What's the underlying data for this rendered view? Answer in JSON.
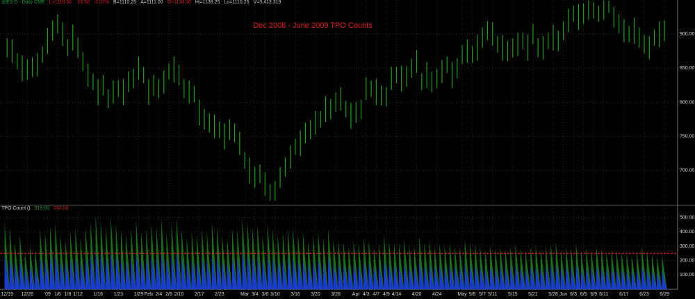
{
  "chart_data": [
    {
      "type": "ohlc",
      "header": [
        "@ES D - Daily CME",
        "L=1118.50",
        "-23.50",
        "-2.07%",
        "B=1110.25",
        "A=1111.00",
        "O=1134.00",
        "Hi=1138.25",
        "Lo=1110.25",
        "V=3,413,319"
      ],
      "title": "Dec 2008 - June 2009 TPO Counts",
      "color": "#1fa21f",
      "grid": true,
      "xlim": [
        -1.4,
        132.6
      ],
      "xticks": [
        {
          "value": 0,
          "label": "12/19"
        },
        {
          "value": 4,
          "label": "12/26"
        },
        {
          "value": 8,
          "label": "'09"
        },
        {
          "value": 10,
          "label": "1/6"
        },
        {
          "value": 12,
          "label": "1/8"
        },
        {
          "value": 14,
          "label": "1/12"
        },
        {
          "value": 18,
          "label": "1/16"
        },
        {
          "value": 22,
          "label": "1/23"
        },
        {
          "value": 26,
          "label": "1/29"
        },
        {
          "value": 28,
          "label": "Feb"
        },
        {
          "value": 30,
          "label": "2/4"
        },
        {
          "value": 32,
          "label": "2/6"
        },
        {
          "value": 34,
          "label": "2/10"
        },
        {
          "value": 38,
          "label": "2/17"
        },
        {
          "value": 42,
          "label": "2/23"
        },
        {
          "value": 47,
          "label": "Mar"
        },
        {
          "value": 49,
          "label": "3/4"
        },
        {
          "value": 51,
          "label": "3/6"
        },
        {
          "value": 53,
          "label": "3/10"
        },
        {
          "value": 57,
          "label": "3/16"
        },
        {
          "value": 61,
          "label": "3/20"
        },
        {
          "value": 65,
          "label": "3/26"
        },
        {
          "value": 69,
          "label": "Apr"
        },
        {
          "value": 71,
          "label": "4/3"
        },
        {
          "value": 73,
          "label": "4/7"
        },
        {
          "value": 75,
          "label": "4/9"
        },
        {
          "value": 77,
          "label": "4/14"
        },
        {
          "value": 81,
          "label": "4/20"
        },
        {
          "value": 85,
          "label": "4/24"
        },
        {
          "value": 90,
          "label": "May"
        },
        {
          "value": 92,
          "label": "5/5"
        },
        {
          "value": 94,
          "label": "5/7"
        },
        {
          "value": 96,
          "label": "5/11"
        },
        {
          "value": 100,
          "label": "5/15"
        },
        {
          "value": 104,
          "label": "5/21"
        },
        {
          "value": 108,
          "label": "5/28"
        },
        {
          "value": 110,
          "label": "Jun"
        },
        {
          "value": 112,
          "label": "6/3"
        },
        {
          "value": 114,
          "label": "6/5"
        },
        {
          "value": 116,
          "label": "6/9"
        },
        {
          "value": 118,
          "label": "6/11"
        },
        {
          "value": 122,
          "label": "6/17"
        },
        {
          "value": 126,
          "label": "6/23"
        },
        {
          "value": 130,
          "label": "6/29"
        }
      ],
      "ylim": [
        650,
        950
      ],
      "yticks": [
        {
          "value": 700,
          "label": "700.00"
        },
        {
          "value": 750,
          "label": "750.00"
        },
        {
          "value": 800,
          "label": "800.00"
        },
        {
          "value": 850,
          "label": "850.00"
        },
        {
          "value": 900,
          "label": "900.00"
        }
      ],
      "high": [
        894,
        892,
        872,
        869,
        863,
        866,
        872,
        882,
        909,
        920,
        929,
        917,
        892,
        914,
        895,
        874,
        857,
        842,
        834,
        840,
        819,
        832,
        832,
        834,
        845,
        849,
        867,
        852,
        834,
        840,
        834,
        847,
        857,
        867,
        855,
        834,
        832,
        824,
        804,
        790,
        784,
        782,
        772,
        769,
        775,
        769,
        757,
        727,
        719,
        705,
        709,
        697,
        680,
        684,
        705,
        719,
        737,
        747,
        759,
        770,
        774,
        787,
        787,
        809,
        805,
        814,
        822,
        802,
        799,
        800,
        804,
        837,
        832,
        834,
        825,
        822,
        852,
        852,
        854,
        853,
        864,
        877,
        842,
        859,
        845,
        849,
        862,
        867,
        859,
        865,
        884,
        892,
        882,
        899,
        910,
        919,
        917,
        897,
        899,
        890,
        894,
        902,
        902,
        899,
        915,
        894,
        897,
        902,
        914,
        905,
        919,
        937,
        942,
        944,
        945,
        949,
        947,
        942,
        949,
        949,
        940,
        929,
        922,
        912,
        924,
        910,
        899,
        897,
        907,
        919,
        920
      ],
      "low": [
        866,
        858,
        848,
        831,
        833,
        838,
        838,
        858,
        871,
        890,
        901,
        883,
        868,
        876,
        865,
        846,
        823,
        818,
        796,
        810,
        791,
        798,
        808,
        796,
        815,
        821,
        833,
        828,
        796,
        810,
        806,
        813,
        833,
        829,
        825,
        806,
        798,
        800,
        766,
        760,
        756,
        748,
        748,
        731,
        745,
        741,
        723,
        703,
        681,
        675,
        681,
        663,
        656,
        656,
        675,
        691,
        703,
        723,
        721,
        740,
        746,
        753,
        763,
        771,
        775,
        786,
        788,
        778,
        761,
        770,
        776,
        803,
        808,
        796,
        795,
        794,
        818,
        828,
        816,
        823,
        836,
        843,
        818,
        821,
        815,
        821,
        828,
        843,
        821,
        835,
        856,
        858,
        858,
        861,
        880,
        891,
        883,
        873,
        861,
        860,
        866,
        868,
        878,
        861,
        885,
        866,
        863,
        878,
        876,
        875,
        891,
        903,
        918,
        906,
        915,
        921,
        923,
        918,
        921,
        931,
        910,
        901,
        888,
        888,
        886,
        880,
        871,
        863,
        883,
        881,
        890
      ]
    },
    {
      "type": "sawtooth",
      "title": "TPO Count ()",
      "readings": [
        "319.00",
        "250.00"
      ],
      "reference_line": {
        "value": 250,
        "color": "#e02020"
      },
      "xlim": [
        -1.4,
        132.6
      ],
      "ylim": [
        0,
        580
      ],
      "yticks": [
        {
          "value": 100,
          "label": "100.00"
        },
        {
          "value": 200,
          "label": "200.00"
        },
        {
          "value": 300,
          "label": "300.00"
        },
        {
          "value": 400,
          "label": "400.00"
        },
        {
          "value": 500,
          "label": "500.00"
        }
      ],
      "grid": true,
      "series": [
        {
          "color": "#1a6e1a",
          "values": [
            470,
            430,
            330,
            380,
            260,
            310,
            280,
            420,
            400,
            440,
            460,
            380,
            350,
            400,
            430,
            360,
            430,
            470,
            520,
            480,
            440,
            510,
            460,
            420,
            380,
            430,
            480,
            400,
            420,
            460,
            440,
            490,
            400,
            470,
            500,
            420,
            360,
            400,
            380,
            420,
            400,
            470,
            440,
            380,
            360,
            430,
            420,
            500,
            470,
            440,
            450,
            380,
            460,
            420,
            380,
            400,
            420,
            430,
            390,
            400,
            340,
            380,
            400,
            360,
            420,
            350,
            340,
            330,
            300,
            340,
            320,
            360,
            340,
            300,
            320,
            380,
            340,
            330,
            320,
            350,
            310,
            300,
            370,
            330,
            350,
            300,
            320,
            310,
            330,
            300,
            300,
            350,
            330,
            320,
            300,
            280,
            310,
            290,
            300,
            280,
            300,
            320,
            290,
            270,
            300,
            310,
            290,
            300,
            320,
            330,
            280,
            300,
            290,
            320,
            270,
            290,
            280,
            300,
            290,
            260,
            280,
            270,
            260,
            250,
            240,
            260,
            300,
            270,
            250,
            230,
            240
          ]
        },
        {
          "color": "#1a3ccc",
          "values": [
            240,
            220,
            180,
            200,
            150,
            170,
            150,
            220,
            210,
            230,
            240,
            200,
            190,
            210,
            220,
            190,
            220,
            240,
            260,
            250,
            230,
            260,
            240,
            220,
            200,
            220,
            250,
            210,
            220,
            240,
            230,
            250,
            210,
            240,
            260,
            220,
            190,
            210,
            200,
            220,
            210,
            240,
            230,
            200,
            190,
            220,
            220,
            260,
            240,
            230,
            230,
            200,
            240,
            220,
            200,
            210,
            220,
            220,
            200,
            210,
            180,
            200,
            210,
            190,
            220,
            180,
            180,
            170,
            160,
            180,
            170,
            190,
            180,
            160,
            170,
            200,
            180,
            170,
            170,
            180,
            160,
            160,
            190,
            170,
            180,
            160,
            170,
            160,
            170,
            160,
            160,
            180,
            170,
            170,
            160,
            150,
            160,
            150,
            160,
            150,
            160,
            170,
            150,
            140,
            160,
            160,
            150,
            160,
            170,
            170,
            150,
            160,
            150,
            170,
            140,
            150,
            150,
            160,
            150,
            140,
            150,
            140,
            140,
            130,
            130,
            140,
            160,
            140,
            130,
            120,
            130
          ]
        }
      ]
    }
  ]
}
